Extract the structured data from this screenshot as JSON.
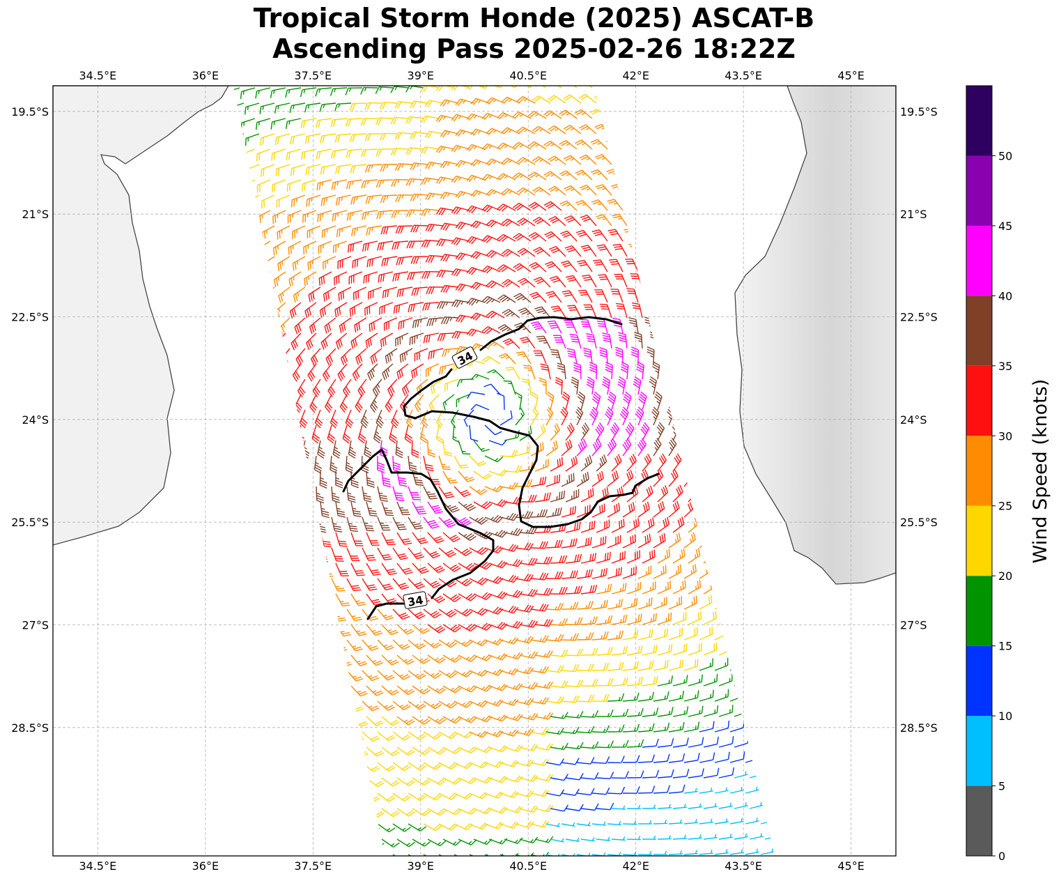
{
  "title": {
    "line1": "Tropical Storm Honde (2025) ASCAT-B",
    "line2": "Ascending Pass 2025-02-26 18:22Z"
  },
  "map": {
    "lon_range": [
      33.875,
      45.625
    ],
    "lat_range": [
      -30.375,
      -19.125
    ],
    "lon_ticks": [
      "34.5°E",
      "36°E",
      "37.5°E",
      "39°E",
      "40.5°E",
      "42°E",
      "43.5°E",
      "45°E"
    ],
    "lat_ticks": [
      "19.5°S",
      "21°S",
      "22.5°S",
      "24°S",
      "25.5°S",
      "27°S",
      "28.5°S"
    ],
    "lon_values": [
      34.5,
      36,
      37.5,
      39,
      40.5,
      42,
      43.5,
      45
    ],
    "lat_values": [
      -19.5,
      -21,
      -22.5,
      -24,
      -25.5,
      -27,
      -28.5
    ],
    "gridlines": true,
    "land_color": "#f2f2f2",
    "coastline_color": "#444444"
  },
  "storm": {
    "center_lon": 39.95,
    "center_lat": -23.95
  },
  "contour": {
    "value_label": "34",
    "color": "#000000"
  },
  "colorbar": {
    "label": "Wind Speed (knots)",
    "tick_labels": [
      "0",
      "5",
      "10",
      "15",
      "20",
      "25",
      "30",
      "35",
      "40",
      "45",
      "50"
    ],
    "bins": [
      {
        "min": 0,
        "max": 5,
        "color": "#5a5a5a"
      },
      {
        "min": 5,
        "max": 10,
        "color": "#00bfff"
      },
      {
        "min": 10,
        "max": 15,
        "color": "#0033ff"
      },
      {
        "min": 15,
        "max": 20,
        "color": "#009400"
      },
      {
        "min": 20,
        "max": 25,
        "color": "#ffd700"
      },
      {
        "min": 25,
        "max": 30,
        "color": "#ff8c00"
      },
      {
        "min": 30,
        "max": 35,
        "color": "#ff1010"
      },
      {
        "min": 35,
        "max": 40,
        "color": "#804028"
      },
      {
        "min": 40,
        "max": 45,
        "color": "#ff00ff"
      },
      {
        "min": 45,
        "max": 50,
        "color": "#8800b0"
      },
      {
        "min": 50,
        "max": 55,
        "color": "#2e0060"
      }
    ]
  }
}
